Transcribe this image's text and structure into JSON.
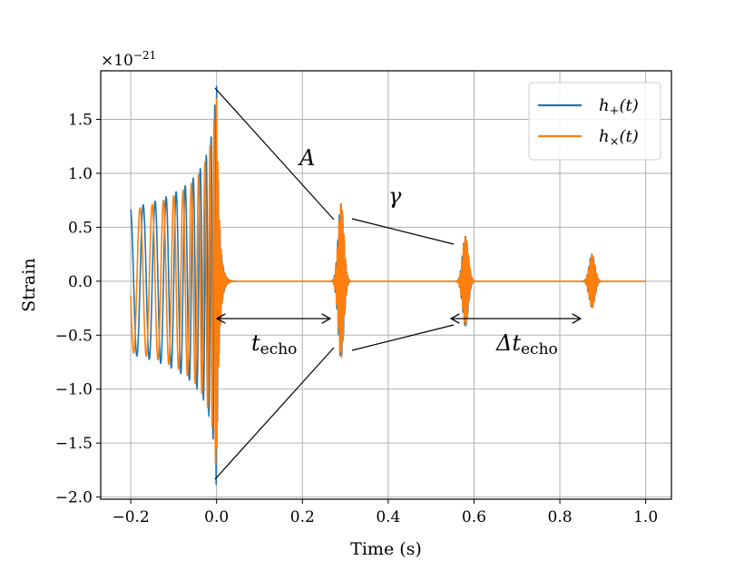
{
  "chart_data": {
    "type": "line",
    "xlabel": "Time (s)",
    "ylabel": "Strain",
    "xlim": [
      -0.27,
      1.06
    ],
    "ylim": [
      -2.02,
      1.95
    ],
    "y_scale_multiplier": "×10",
    "y_scale_exponent": "−21",
    "xticks": [
      -0.2,
      0.0,
      0.2,
      0.4,
      0.6,
      0.8,
      1.0
    ],
    "xtick_labels": [
      "−0.2",
      "0.0",
      "0.2",
      "0.4",
      "0.6",
      "0.8",
      "1.0"
    ],
    "yticks": [
      1.5,
      1.0,
      0.5,
      0.0,
      -0.5,
      -1.0,
      -1.5,
      -2.0
    ],
    "ytick_labels": [
      "1.5",
      "1.0",
      "0.5",
      "0.0",
      "−0.5",
      "−1.0",
      "−1.5",
      "−2.0"
    ],
    "grid": true,
    "legend_position": "top-right",
    "series": [
      {
        "name": "h+(t)",
        "legend_label_main": "h",
        "legend_label_sub": "+",
        "legend_label_tail": "(t)",
        "color": "#1f77b4"
      },
      {
        "name": "h×(t)",
        "legend_label_main": "h",
        "legend_label_sub": "×",
        "legend_label_tail": "(t)",
        "color": "#ff7f0e"
      }
    ],
    "waveform": {
      "t_start": -0.2,
      "t_merger": 0.0,
      "t_end": 1.0,
      "inspiral_amplitude_start": 0.68,
      "peak_amplitude": 1.82,
      "echoes": [
        {
          "t": 0.29,
          "amplitude": 0.72
        },
        {
          "t": 0.58,
          "amplitude": 0.42
        },
        {
          "t": 0.875,
          "amplitude": 0.25
        }
      ]
    },
    "annotations": {
      "amplitude_label": "A",
      "damping_label": "γ",
      "echo_time_label_main": "t",
      "echo_time_label_sub": "echo",
      "echo_spacing_label_main": "Δt",
      "echo_spacing_label_sub": "echo"
    }
  }
}
